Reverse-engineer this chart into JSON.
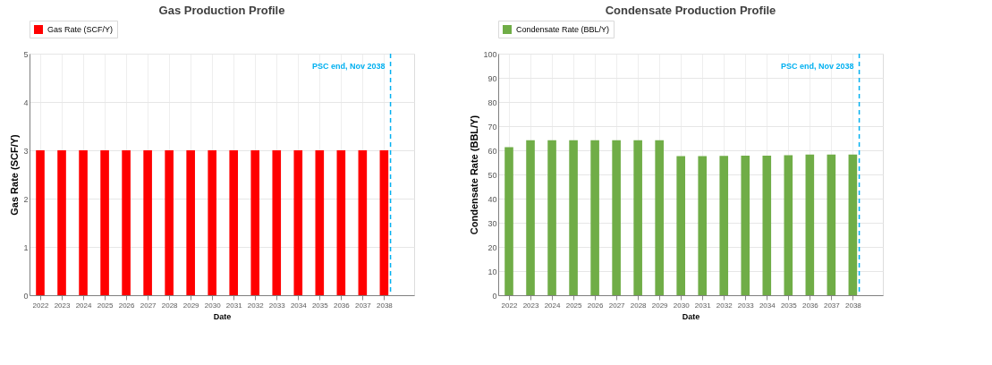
{
  "chart_data": [
    {
      "type": "bar",
      "title": "Gas Production Profile",
      "xlabel": "Date",
      "ylabel": "Gas Rate (SCF/Y)",
      "x": [
        2022,
        2023,
        2024,
        2025,
        2026,
        2027,
        2028,
        2029,
        2030,
        2031,
        2032,
        2033,
        2034,
        2035,
        2036,
        2037,
        2038
      ],
      "series": [
        {
          "name": "Gas Rate (SCF/Y)",
          "color": "#ff0000",
          "values": [
            3,
            3,
            3,
            3,
            3,
            3,
            3,
            3,
            3,
            3,
            3,
            3,
            3,
            3,
            3,
            3,
            3
          ]
        }
      ],
      "xlim": [
        2021.5,
        2039.4
      ],
      "xticks": [
        2022,
        2023,
        2024,
        2025,
        2026,
        2027,
        2028,
        2029,
        2030,
        2031,
        2032,
        2033,
        2034,
        2035,
        2036,
        2037,
        2038
      ],
      "ylim": [
        0,
        5
      ],
      "yticks": [
        0,
        1,
        2,
        3,
        4,
        5
      ],
      "ref_lines": [
        {
          "axis": "x",
          "value": 2038.3,
          "label": "PSC end, Nov 2038",
          "color": "#00b0f0",
          "line_style": "dashed"
        }
      ],
      "grid": true,
      "legend": "top"
    },
    {
      "type": "bar",
      "title": "Condensate  Production Profile",
      "xlabel": "Date",
      "ylabel": "Condensate Rate (BBL/Y)",
      "x": [
        2022,
        2023,
        2024,
        2025,
        2026,
        2027,
        2028,
        2029,
        2030,
        2031,
        2032,
        2033,
        2034,
        2035,
        2036,
        2037,
        2038
      ],
      "series": [
        {
          "name": "Condensate Rate (BBL/Y)",
          "color": "#70ad47",
          "values": [
            61.3,
            64.2,
            64.2,
            64.2,
            64.2,
            64.2,
            64.2,
            64.2,
            57.6,
            57.6,
            57.7,
            57.8,
            57.8,
            58.0,
            58.2,
            58.2,
            58.2
          ]
        }
      ],
      "xlim": [
        2021.5,
        2039.4
      ],
      "xticks": [
        2022,
        2023,
        2024,
        2025,
        2026,
        2027,
        2028,
        2029,
        2030,
        2031,
        2032,
        2033,
        2034,
        2035,
        2036,
        2037,
        2038
      ],
      "ylim": [
        0,
        100
      ],
      "yticks": [
        0,
        10,
        20,
        30,
        40,
        50,
        60,
        70,
        80,
        90,
        100
      ],
      "ref_lines": [
        {
          "axis": "x",
          "value": 2038.3,
          "label": "PSC end, Nov 2038",
          "color": "#00b0f0",
          "line_style": "dashed"
        }
      ],
      "grid": true,
      "legend": "top"
    }
  ]
}
